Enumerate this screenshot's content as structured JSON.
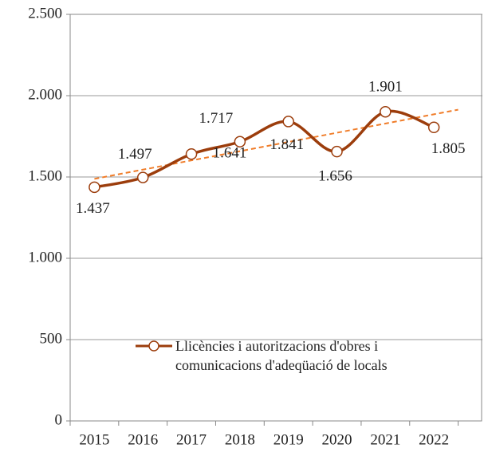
{
  "chart_data": {
    "type": "line",
    "categories": [
      "2015",
      "2016",
      "2017",
      "2018",
      "2019",
      "2020",
      "2021",
      "2022"
    ],
    "series": [
      {
        "name": "Llicències i autoritzacions d'obres i comunicacions d'adeqüació de locals",
        "color": "#9c3d0c",
        "values": [
          1437,
          1497,
          1641,
          1717,
          1841,
          1656,
          1901,
          1805
        ],
        "value_labels": [
          "1.437",
          "1.497",
          "1.641",
          "1.717",
          "1.841",
          "1.656",
          "1.901",
          "1.805"
        ]
      }
    ],
    "ylim": [
      0,
      2500
    ],
    "yticks": [
      {
        "value": 0,
        "label": "0"
      },
      {
        "value": 500,
        "label": "500"
      },
      {
        "value": 1000,
        "label": "1.000"
      },
      {
        "value": 1500,
        "label": "1.500"
      },
      {
        "value": 2000,
        "label": "2.000"
      },
      {
        "value": 2500,
        "label": "2.500"
      }
    ],
    "grid": true,
    "smooth": true,
    "trendline": true,
    "trendline_color": "#f07d2a"
  }
}
